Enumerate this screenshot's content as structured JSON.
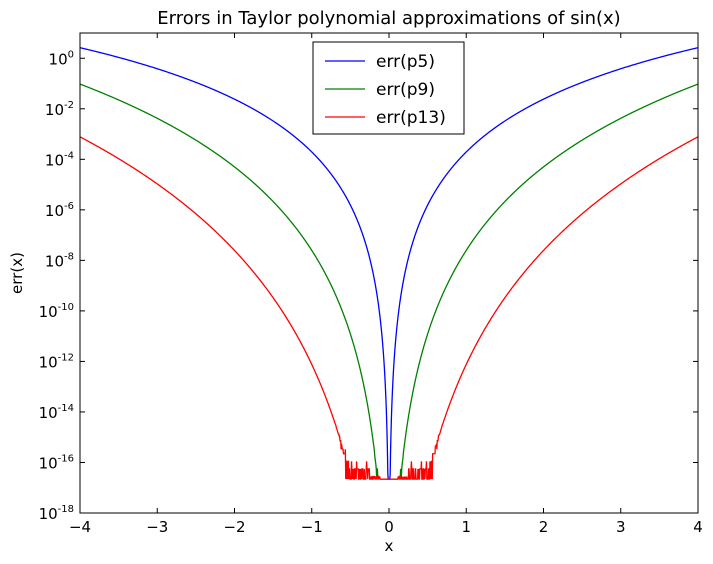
{
  "chart_data": {
    "type": "line",
    "title": "Errors in Taylor polynomial approximations of sin(x)",
    "xlabel": "x",
    "ylabel": "err(x)",
    "xlim": [
      -4,
      4
    ],
    "ylim": [
      1e-18,
      10
    ],
    "yscale": "log",
    "grid": false,
    "legend_position": "top-center",
    "x_ticks": [
      -4,
      -3,
      -2,
      -1,
      0,
      1,
      2,
      3,
      4
    ],
    "x_tick_labels": [
      "−4",
      "−3",
      "−2",
      "−1",
      "0",
      "1",
      "2",
      "3",
      "4"
    ],
    "y_ticks": [
      1e-18,
      1e-16,
      1e-14,
      1e-12,
      1e-10,
      1e-08,
      1e-06,
      0.0001,
      0.01,
      1
    ],
    "y_tick_labels": [
      {
        "base": "10",
        "exp": "-18"
      },
      {
        "base": "10",
        "exp": "-16"
      },
      {
        "base": "10",
        "exp": "-14"
      },
      {
        "base": "10",
        "exp": "-12"
      },
      {
        "base": "10",
        "exp": "-10"
      },
      {
        "base": "10",
        "exp": "-8"
      },
      {
        "base": "10",
        "exp": "-6"
      },
      {
        "base": "10",
        "exp": "-4"
      },
      {
        "base": "10",
        "exp": "-2"
      },
      {
        "base": "10",
        "exp": "0"
      }
    ],
    "series": [
      {
        "name": "err(p5)",
        "color": "#0000ff",
        "degree": 5
      },
      {
        "name": "err(p9)",
        "color": "#008000",
        "degree": 9
      },
      {
        "name": "err(p13)",
        "color": "#ff0000",
        "degree": 13
      }
    ]
  }
}
